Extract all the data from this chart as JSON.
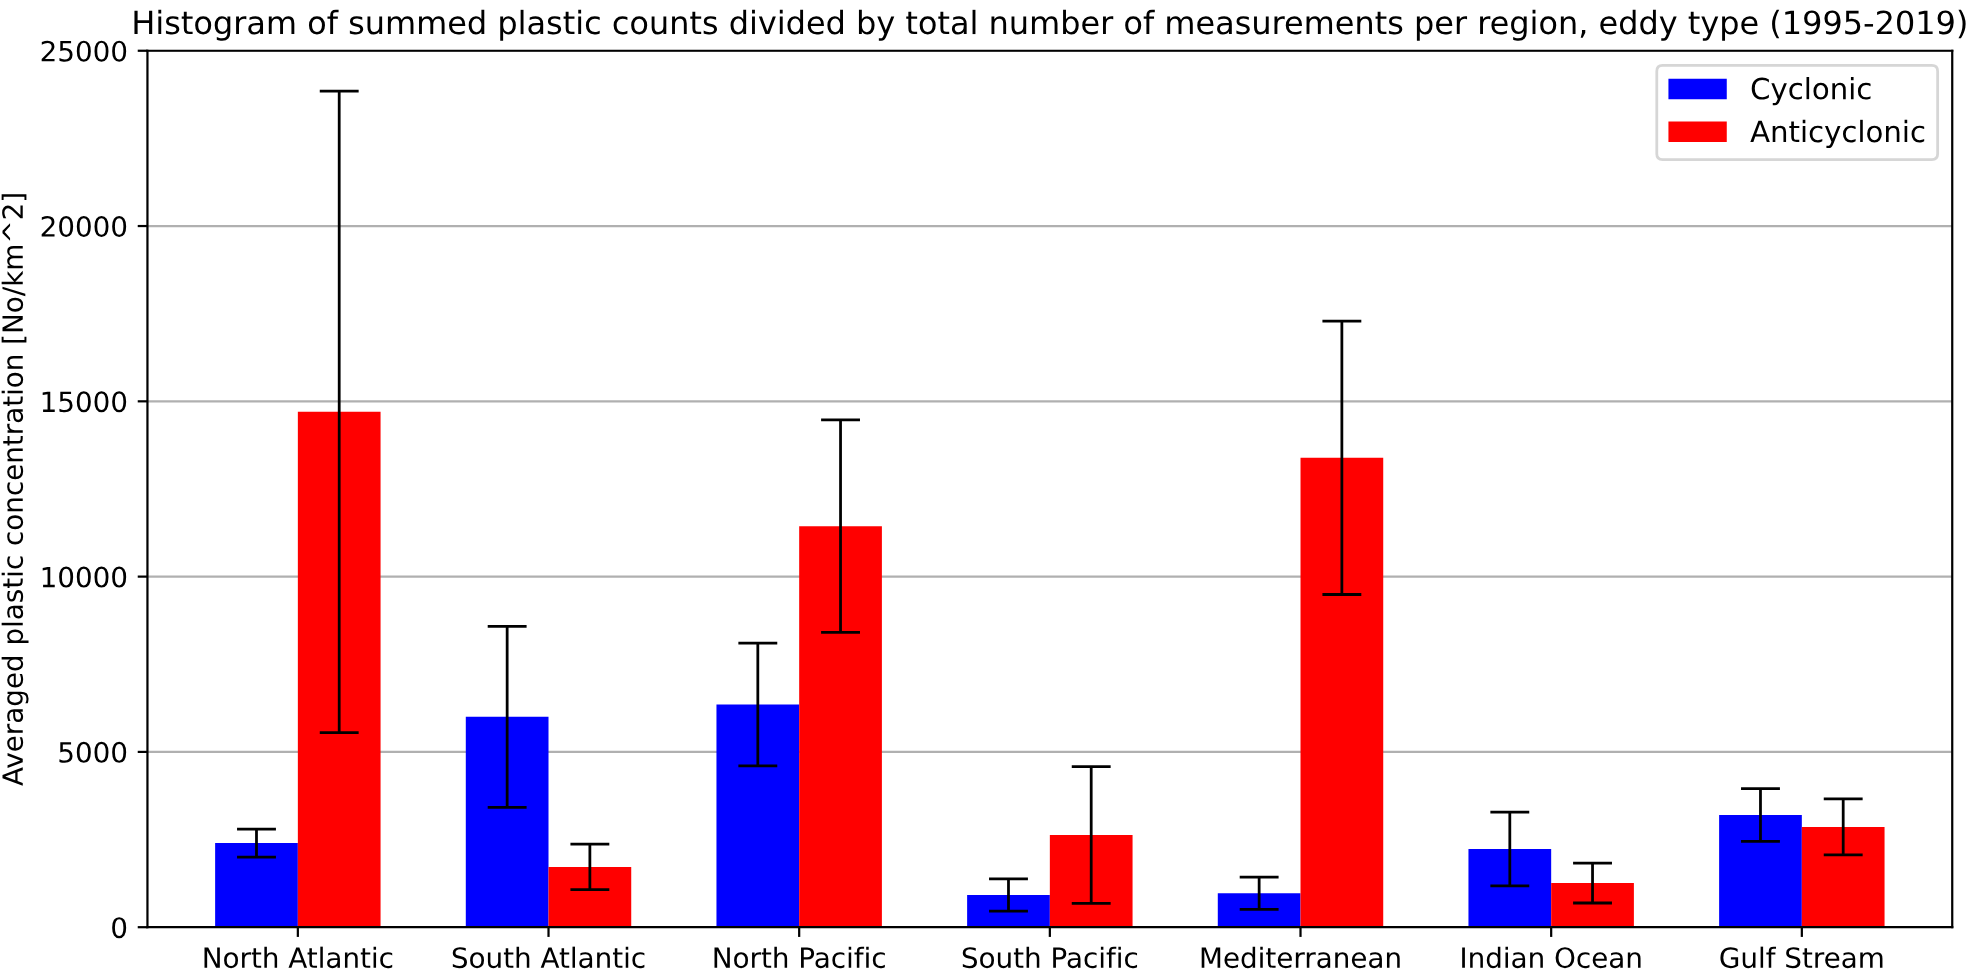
{
  "chart_data": {
    "type": "bar",
    "title": "Histogram of summed plastic counts divided by total number of measurements per region, eddy type (1995-2019)",
    "ylabel": "Averaged plastic concentration [No/km^2]",
    "categories": [
      "North Atlantic",
      "South Atlantic",
      "North Pacific",
      "South Pacific",
      "Mediterranean",
      "Indian Ocean",
      "Gulf Stream"
    ],
    "series": [
      {
        "name": "Cyclonic",
        "color": "#0000ff",
        "values": [
          2400,
          6000,
          6350,
          920,
          970,
          2230,
          3200
        ],
        "errors": [
          400,
          2580,
          1750,
          460,
          460,
          1050,
          750
        ]
      },
      {
        "name": "Anticyclonic",
        "color": "#ff0000",
        "values": [
          14700,
          1720,
          11440,
          2630,
          13390,
          1260,
          2860
        ],
        "errors": [
          9150,
          650,
          3030,
          1950,
          3900,
          570,
          800
        ]
      }
    ],
    "ylim": [
      0,
      25000
    ],
    "yticks": [
      0,
      5000,
      10000,
      15000,
      20000,
      25000
    ],
    "grid": "y",
    "legend": "top right"
  }
}
